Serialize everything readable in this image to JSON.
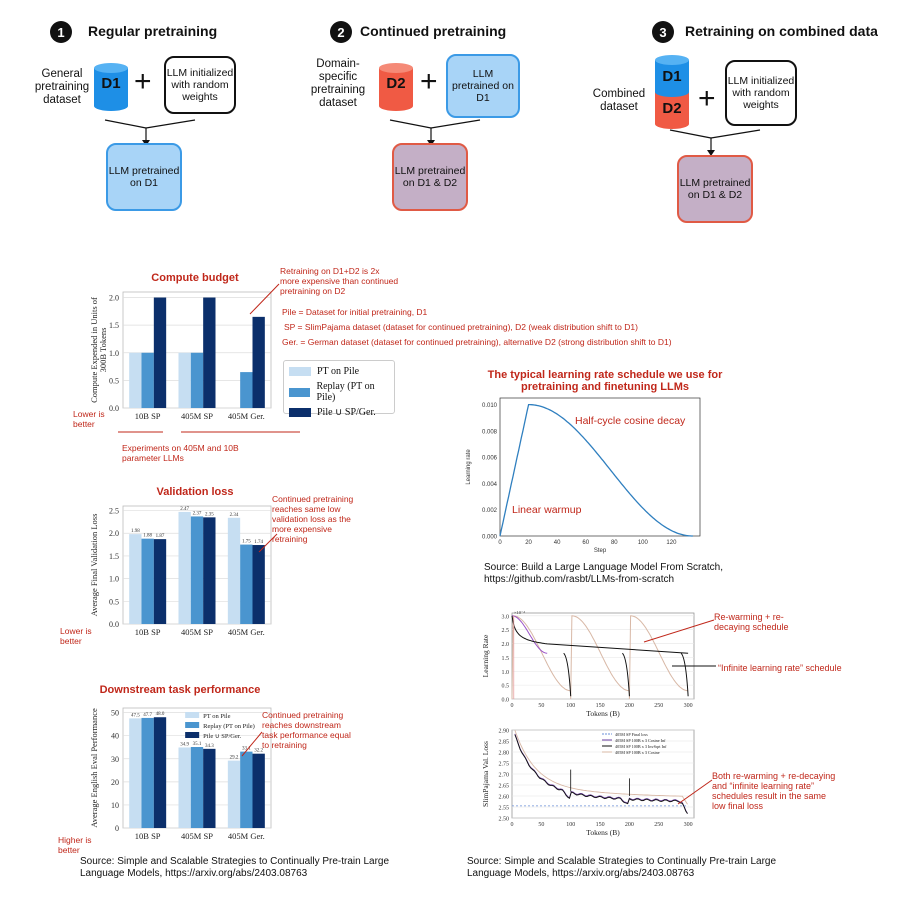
{
  "steps": [
    {
      "num": "1",
      "title": "Regular pretraining",
      "dataset_label": "General pretraining dataset",
      "dataset": "D1",
      "model_box": "LLM initialized with random weights",
      "result": "LLM pretrained on D1"
    },
    {
      "num": "2",
      "title": "Continued pretraining",
      "dataset_label": "Domain-specific pretraining dataset",
      "dataset": "D2",
      "model_box": "LLM pretrained on D1",
      "result": "LLM pretrained on D1 & D2"
    },
    {
      "num": "3",
      "title": "Retraining on combined data",
      "dataset_label": "Combined dataset",
      "dataset_top": "D1",
      "dataset_bottom": "D2",
      "model_box": "LLM initialized with random weights",
      "result": "LLM pretrained on D1 & D2"
    }
  ],
  "colors": {
    "d1": "#1e8fe6",
    "d2": "#f05a44",
    "accent": "#c0271a",
    "pt_pile": "#c6def2",
    "replay": "#4a95cf",
    "pile_union": "#0b2f6b"
  },
  "compute": {
    "title": "Compute budget",
    "ylabel": "Compute Expended in Units of 300B Tokens",
    "side_note": "Lower is better",
    "bottom_note": "Experiments on 405M and 10B parameter LLMs",
    "annotation": "Retraining on D1+D2 is 2x more expensive than continued pretraining on D2",
    "defs": [
      "Pile = Dataset for initial pretraining, D1",
      "SP = SlimPajama dataset (dataset for continued pretraining), D2 (weak distribution shift to D1)",
      "Ger. = German dataset (dataset for continued pretraining), alternative D2 (strong distribution shift to D1)"
    ]
  },
  "legend": [
    "PT on Pile",
    "Replay (PT on Pile)",
    "Pile ∪ SP/Ger."
  ],
  "validation": {
    "title": "Validation loss",
    "ylabel": "Average Final Validation Loss",
    "side_note": "Lower is better",
    "annotation": "Continued pretraining reaches same low validation loss as the more expensive retraining"
  },
  "downstream": {
    "title": "Downstream task performance",
    "ylabel": "Average English Eval Performance",
    "side_note": "Higher is better",
    "annotation": "Continued pretraining reaches downstream task performance equal to retraining",
    "legend": [
      "PT on Pile",
      "Replay (PT on Pile)",
      "Pile ∪ SP/Ger."
    ]
  },
  "lr": {
    "title": "The typical learning rate schedule we use for pretraining and finetuning LLMs",
    "xlabel": "Step",
    "ylabel": "Learning rate",
    "label_cos": "Half-cycle cosine decay",
    "label_warm": "Linear warmup",
    "source": "Source: Build a Large Language Model From Scratch, https://github.com/rasbt/LLMs-from-scratch"
  },
  "inf": {
    "top_ylabel": "Learning Rate",
    "bottom_ylabel": "SlimPajama Val. Loss",
    "xlabel": "Tokens (B)",
    "exp": "×10⁻⁴",
    "ann_rewarm": "Re-warming + re-decaying schedule",
    "ann_infinite": "“Infinite learning rate” schedule",
    "ann_both": "Both re-warming + re-decaying and “infinite learning rate” schedules result in the same low final loss",
    "legend": [
      "405M SP  Final loss",
      "405M SP 100B x 3 Cosine Inf",
      "405M SP 100B x 3 InvSqrt Inf",
      "405M SP 100B x 3 Cosine"
    ]
  },
  "source_left": "Source: Simple and Scalable Strategies to Continually Pre-train Large Language Models, https://arxiv.org/abs/2403.08763",
  "source_right": "Source: Simple and Scalable Strategies to Continually Pre-train Large Language Models, https://arxiv.org/abs/2403.08763",
  "chart_data": [
    {
      "type": "bar",
      "title": "Compute budget",
      "ylabel": "Compute Expended in Units of 300B Tokens",
      "categories": [
        "10B SP",
        "405M SP",
        "405M Ger."
      ],
      "ylim": [
        0,
        2.1
      ],
      "yticks": [
        "0.0",
        "0.5",
        "1.0",
        "1.5",
        "2.0"
      ],
      "series": [
        {
          "name": "PT on Pile",
          "values": [
            1.0,
            1.0,
            null
          ]
        },
        {
          "name": "Replay (PT on Pile)",
          "values": [
            1.0,
            1.0,
            0.65
          ]
        },
        {
          "name": "Pile ∪ SP/Ger.",
          "values": [
            2.0,
            2.0,
            1.65
          ]
        }
      ]
    },
    {
      "type": "bar",
      "title": "Validation loss",
      "ylabel": "Average Final Validation Loss",
      "categories": [
        "10B SP",
        "405M SP",
        "405M Ger."
      ],
      "ylim": [
        0,
        2.6
      ],
      "yticks": [
        "0.0",
        "0.5",
        "1.0",
        "1.5",
        "2.0",
        "2.5"
      ],
      "series": [
        {
          "name": "PT on Pile",
          "values": [
            1.98,
            2.47,
            2.34
          ],
          "labels": [
            "1.98",
            "2.47",
            "2.34"
          ]
        },
        {
          "name": "Replay (PT on Pile)",
          "values": [
            1.88,
            2.37,
            1.75
          ],
          "labels": [
            "1.88",
            "2.37",
            "1.75"
          ]
        },
        {
          "name": "Pile ∪ SP/Ger.",
          "values": [
            1.87,
            2.35,
            1.74
          ],
          "labels": [
            "1.87",
            "2.35",
            "1.74"
          ]
        }
      ]
    },
    {
      "type": "bar",
      "title": "Downstream task performance",
      "ylabel": "Average English Eval Performance",
      "categories": [
        "10B SP",
        "405M SP",
        "405M Ger."
      ],
      "ylim": [
        0,
        52
      ],
      "yticks": [
        "0",
        "10",
        "20",
        "30",
        "40",
        "50"
      ],
      "series": [
        {
          "name": "PT on Pile",
          "values": [
            47.5,
            34.9,
            29.2
          ],
          "labels": [
            "47.5",
            "34.9",
            "29.2"
          ]
        },
        {
          "name": "Replay (PT on Pile)",
          "values": [
            47.7,
            35.1,
            33.1
          ],
          "labels": [
            "47.7",
            "35.1",
            "33.1"
          ]
        },
        {
          "name": "Pile ∪ SP/Ger.",
          "values": [
            48.0,
            34.3,
            32.2
          ],
          "labels": [
            "48.0",
            "34.3",
            "32.2"
          ]
        }
      ]
    },
    {
      "type": "line",
      "title": "The typical learning rate schedule we use for pretraining and finetuning LLMs",
      "xlabel": "Step",
      "ylabel": "Learning rate",
      "xlim": [
        0,
        140
      ],
      "ylim": [
        0,
        0.0105
      ],
      "xticks": [
        "0",
        "20",
        "40",
        "60",
        "80",
        "100",
        "120"
      ],
      "yticks": [
        "0.000",
        "0.002",
        "0.004",
        "0.006",
        "0.008",
        "0.010"
      ],
      "warmup_steps": 20,
      "total_steps": 135,
      "peak": 0.01
    },
    {
      "type": "line",
      "xlabel": "Tokens (B)",
      "ylabel": "Learning Rate",
      "xlim": [
        0,
        310
      ],
      "ylim": [
        0,
        3.1
      ],
      "xticks": [
        "0",
        "50",
        "100",
        "150",
        "200",
        "250",
        "300"
      ],
      "yticks": [
        "0.0",
        "0.5",
        "1.0",
        "1.5",
        "2.0",
        "2.5",
        "3.0"
      ]
    },
    {
      "type": "line",
      "xlabel": "Tokens (B)",
      "ylabel": "SlimPajama Val. Loss",
      "xlim": [
        0,
        310
      ],
      "ylim": [
        2.5,
        2.9
      ],
      "xticks": [
        "0",
        "50",
        "100",
        "150",
        "200",
        "250",
        "300"
      ],
      "yticks": [
        "2.50",
        "2.55",
        "2.60",
        "2.65",
        "2.70",
        "2.75",
        "2.80",
        "2.85",
        "2.90"
      ],
      "series": [
        {
          "name": "405M SP  Final loss"
        },
        {
          "name": "405M SP 100B x 3 Cosine Inf"
        },
        {
          "name": "405M SP 100B x 3 InvSqrt Inf"
        },
        {
          "name": "405M SP 100B x 3 Cosine"
        }
      ]
    }
  ]
}
